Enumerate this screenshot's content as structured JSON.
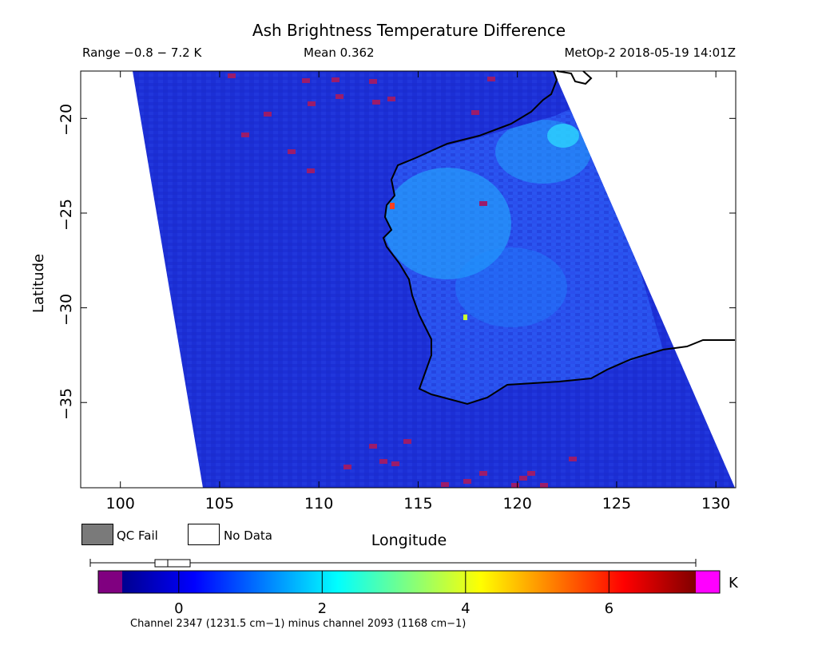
{
  "header": {
    "title": "Ash Brightness Temperature Difference",
    "range": "Range −0.8 − 7.2 K",
    "mean": "Mean 0.362",
    "satellite": "MetOp-2 2018-05-19 14:01Z"
  },
  "map": {
    "x_axis_label": "Longitude",
    "y_axis_label": "Latitude",
    "x_ticks": [
      "100",
      "105",
      "110",
      "115",
      "120",
      "125",
      "130"
    ],
    "y_ticks": [
      "−20",
      "−25",
      "−30",
      "−35"
    ],
    "lon_range": [
      98,
      131
    ],
    "lat_range": [
      -39.5,
      -17.5
    ]
  },
  "legend": {
    "qc_fail": "QC Fail",
    "no_data": "No Data",
    "qc_fail_color": "#7a7a7a",
    "no_data_color": "#ffffff"
  },
  "colorbar": {
    "ticks": [
      "0",
      "2",
      "4",
      "6"
    ],
    "tick_values": [
      0,
      2,
      4,
      6
    ],
    "min": -0.8,
    "max": 7.2,
    "unit": "K",
    "below_color": "#800080",
    "above_color": "#ff00ff",
    "caption": "Channel 2347 (1231.5 cm−1) minus channel 2093 (1168 cm−1)"
  },
  "colors": {
    "ocean": "#1c2fd6",
    "land": "#2a55f0",
    "ash": "#22c8ff",
    "outlier": "#9b1c6b"
  }
}
